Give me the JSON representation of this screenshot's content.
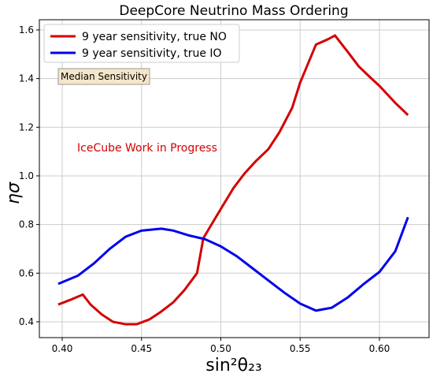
{
  "chart_data": {
    "type": "line",
    "title": "DeepCore Neutrino Mass Ordering",
    "x_label": "sin²θ₂₃",
    "y_label": "ησ",
    "annotations": [
      "Median Sensitivity",
      "IceCube Work in Progress"
    ],
    "xlim": [
      0.3856,
      0.6313
    ],
    "ylim": [
      0.335,
      1.642
    ],
    "xticks": [
      {
        "value": 0.4,
        "label": "0.40"
      },
      0.45,
      {
        "value": 0.5,
        "label": "0.50"
      },
      0.55,
      {
        "value": 0.6,
        "label": "0.60"
      }
    ],
    "yticks": [
      0.4,
      0.6,
      0.8,
      {
        "value": 1.0,
        "label": "1.0"
      },
      1.2,
      1.4,
      1.6
    ],
    "grid": true,
    "legend": "upper left",
    "series": [
      {
        "name": "9 year sensitivity, true NO",
        "color": "#d40000",
        "x": [
          0.3975,
          0.405,
          0.413,
          0.418,
          0.425,
          0.432,
          0.44,
          0.447,
          0.455,
          0.462,
          0.47,
          0.477,
          0.485,
          0.489,
          0.5,
          0.508,
          0.515,
          0.522,
          0.53,
          0.537,
          0.545,
          0.55,
          0.56,
          0.567,
          0.572,
          0.58,
          0.587,
          0.595,
          0.6,
          0.61,
          0.618
        ],
        "values": [
          0.471,
          0.49,
          0.512,
          0.47,
          0.43,
          0.4,
          0.39,
          0.39,
          0.41,
          0.44,
          0.48,
          0.53,
          0.6,
          0.744,
          0.864,
          0.95,
          1.01,
          1.06,
          1.11,
          1.18,
          1.28,
          1.383,
          1.54,
          1.56,
          1.577,
          1.51,
          1.45,
          1.4,
          1.37,
          1.3,
          1.25
        ]
      },
      {
        "name": "9 year sensitivity, true IO",
        "color": "#0000ee",
        "x": [
          0.3975,
          0.41,
          0.42,
          0.43,
          0.44,
          0.45,
          0.4625,
          0.47,
          0.48,
          0.49,
          0.5,
          0.51,
          0.52,
          0.53,
          0.54,
          0.55,
          0.56,
          0.57,
          0.58,
          0.59,
          0.6,
          0.61,
          0.618
        ],
        "values": [
          0.556,
          0.59,
          0.64,
          0.7,
          0.75,
          0.775,
          0.783,
          0.775,
          0.755,
          0.74,
          0.71,
          0.67,
          0.62,
          0.57,
          0.52,
          0.475,
          0.446,
          0.458,
          0.5,
          0.555,
          0.605,
          0.69,
          0.83
        ]
      }
    ]
  }
}
